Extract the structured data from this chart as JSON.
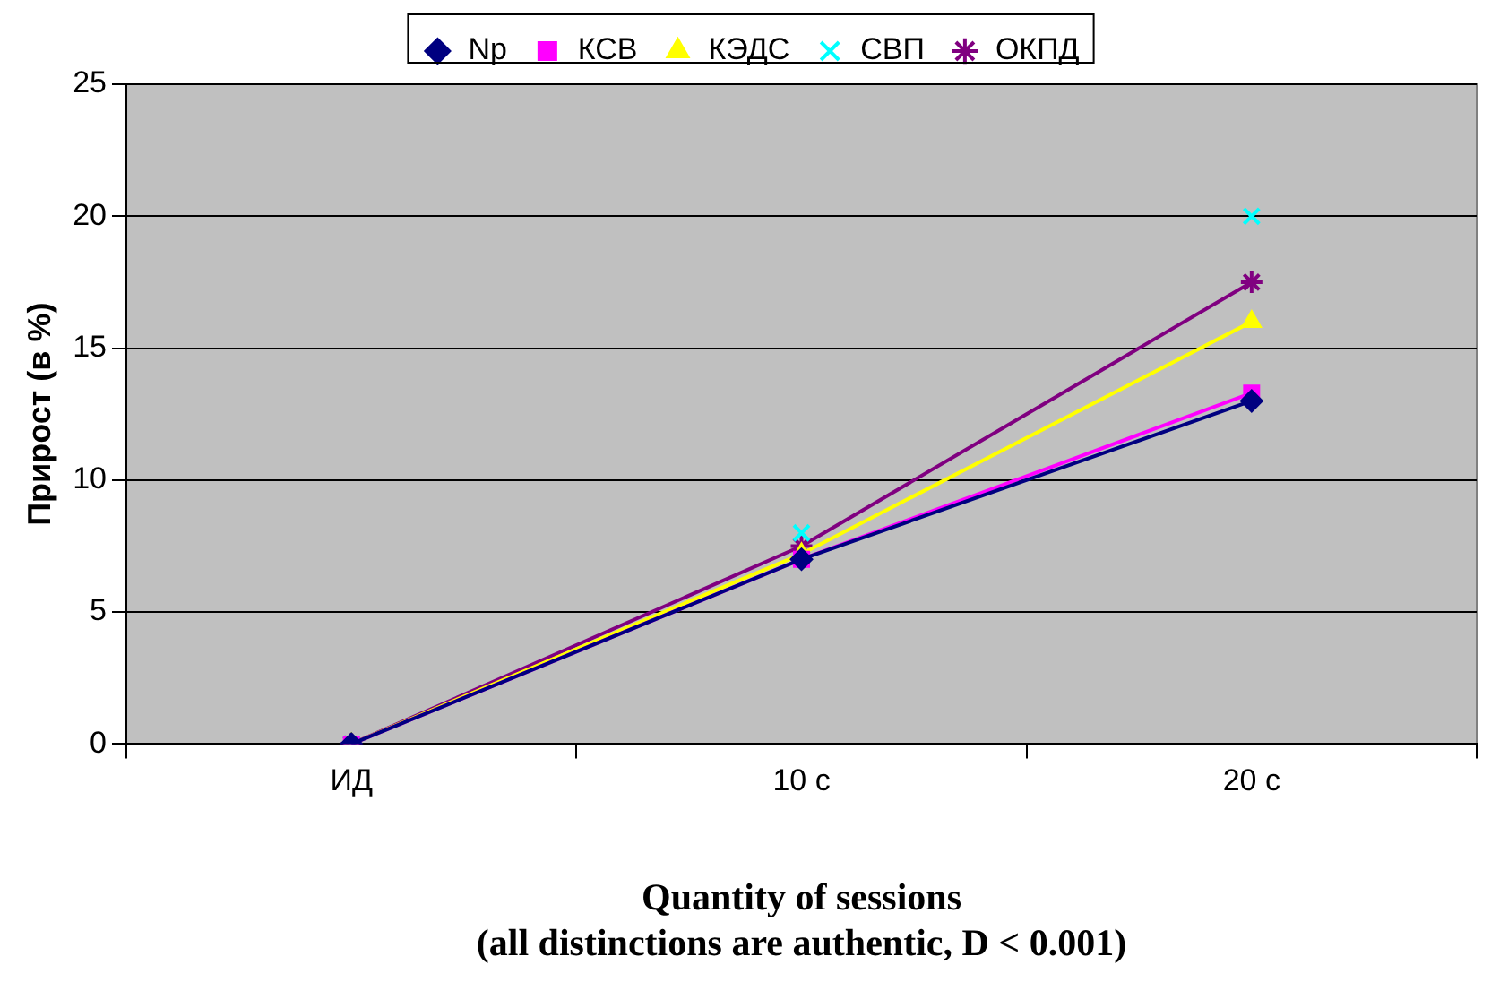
{
  "chart_data": {
    "type": "line",
    "categories": [
      "ИД",
      "10 с",
      "20 с"
    ],
    "ylabel": "Прирост (в %)",
    "xlabel": "Quantity of sessions\n(all distinctions are authentic, D < 0.001)",
    "ylim": [
      0,
      25
    ],
    "yticks": [
      0,
      5,
      10,
      15,
      20,
      25
    ],
    "grid": "y",
    "legend": "top",
    "series": [
      {
        "name": "Np",
        "color": "#000080",
        "values": [
          0,
          7,
          13
        ],
        "marker": "diamond",
        "line_style": "solid"
      },
      {
        "name": "КСВ",
        "color": "#ff00ff",
        "values": [
          0,
          7,
          13.3
        ],
        "marker": "square",
        "line_style": "solid"
      },
      {
        "name": "КЭДС",
        "color": "#ffff00",
        "values": [
          0,
          7.2,
          16
        ],
        "marker": "triangle",
        "line_style": "solid"
      },
      {
        "name": "СВП",
        "type": "scatter",
        "color": "#00ffff",
        "values": [
          0,
          8,
          20
        ],
        "marker": "cross"
      },
      {
        "name": "ОКПД",
        "color": "#800080",
        "values": [
          0,
          7.5,
          17.5
        ],
        "marker": "cross",
        "line_style": "solid"
      }
    ]
  }
}
